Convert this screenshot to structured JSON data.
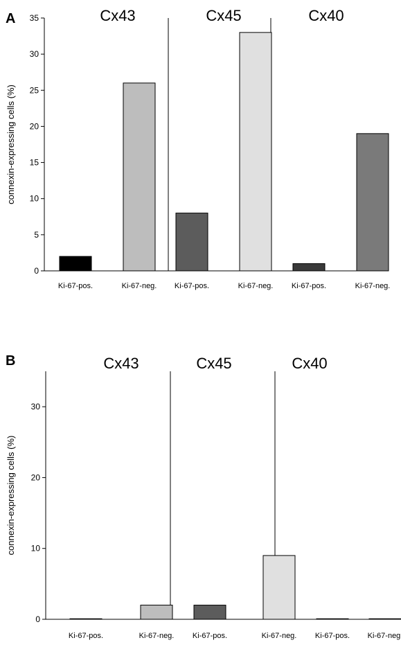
{
  "chart_data": [
    {
      "type": "bar",
      "panel": "A",
      "ylabel": "connexin-expressing cells (%)",
      "ylim": [
        0,
        35
      ],
      "yticks": [
        0,
        5,
        10,
        15,
        20,
        25,
        30,
        35
      ],
      "groups": [
        "Cx43",
        "Cx45",
        "Cx40"
      ],
      "categories": [
        "Ki-67-pos.",
        "Ki-67-neg.",
        "Ki-67-pos.",
        "Ki-67-neg.",
        "Ki-67-pos.",
        "Ki-67-neg."
      ],
      "values": [
        2,
        26,
        8,
        33,
        1,
        19
      ],
      "colors": [
        "#000000",
        "#bdbdbd",
        "#5c5c5c",
        "#e0e0e0",
        "#3a3a3a",
        "#7a7a7a"
      ]
    },
    {
      "type": "bar",
      "panel": "B",
      "ylabel": "connexin-expressing cells (%)",
      "ylim": [
        0,
        35
      ],
      "yticks": [
        0,
        10,
        20,
        30
      ],
      "groups": [
        "Cx43",
        "Cx45",
        "Cx40"
      ],
      "categories": [
        "Ki-67-pos.",
        "Ki-67-neg.",
        "Ki-67-pos.",
        "Ki-67-neg.",
        "Ki-67-pos.",
        "Ki-67-neg."
      ],
      "values": [
        0,
        2,
        2,
        9,
        0,
        0
      ],
      "colors": [
        "#000000",
        "#bdbdbd",
        "#5c5c5c",
        "#e0e0e0",
        "#3a3a3a",
        "#7a7a7a"
      ]
    }
  ]
}
